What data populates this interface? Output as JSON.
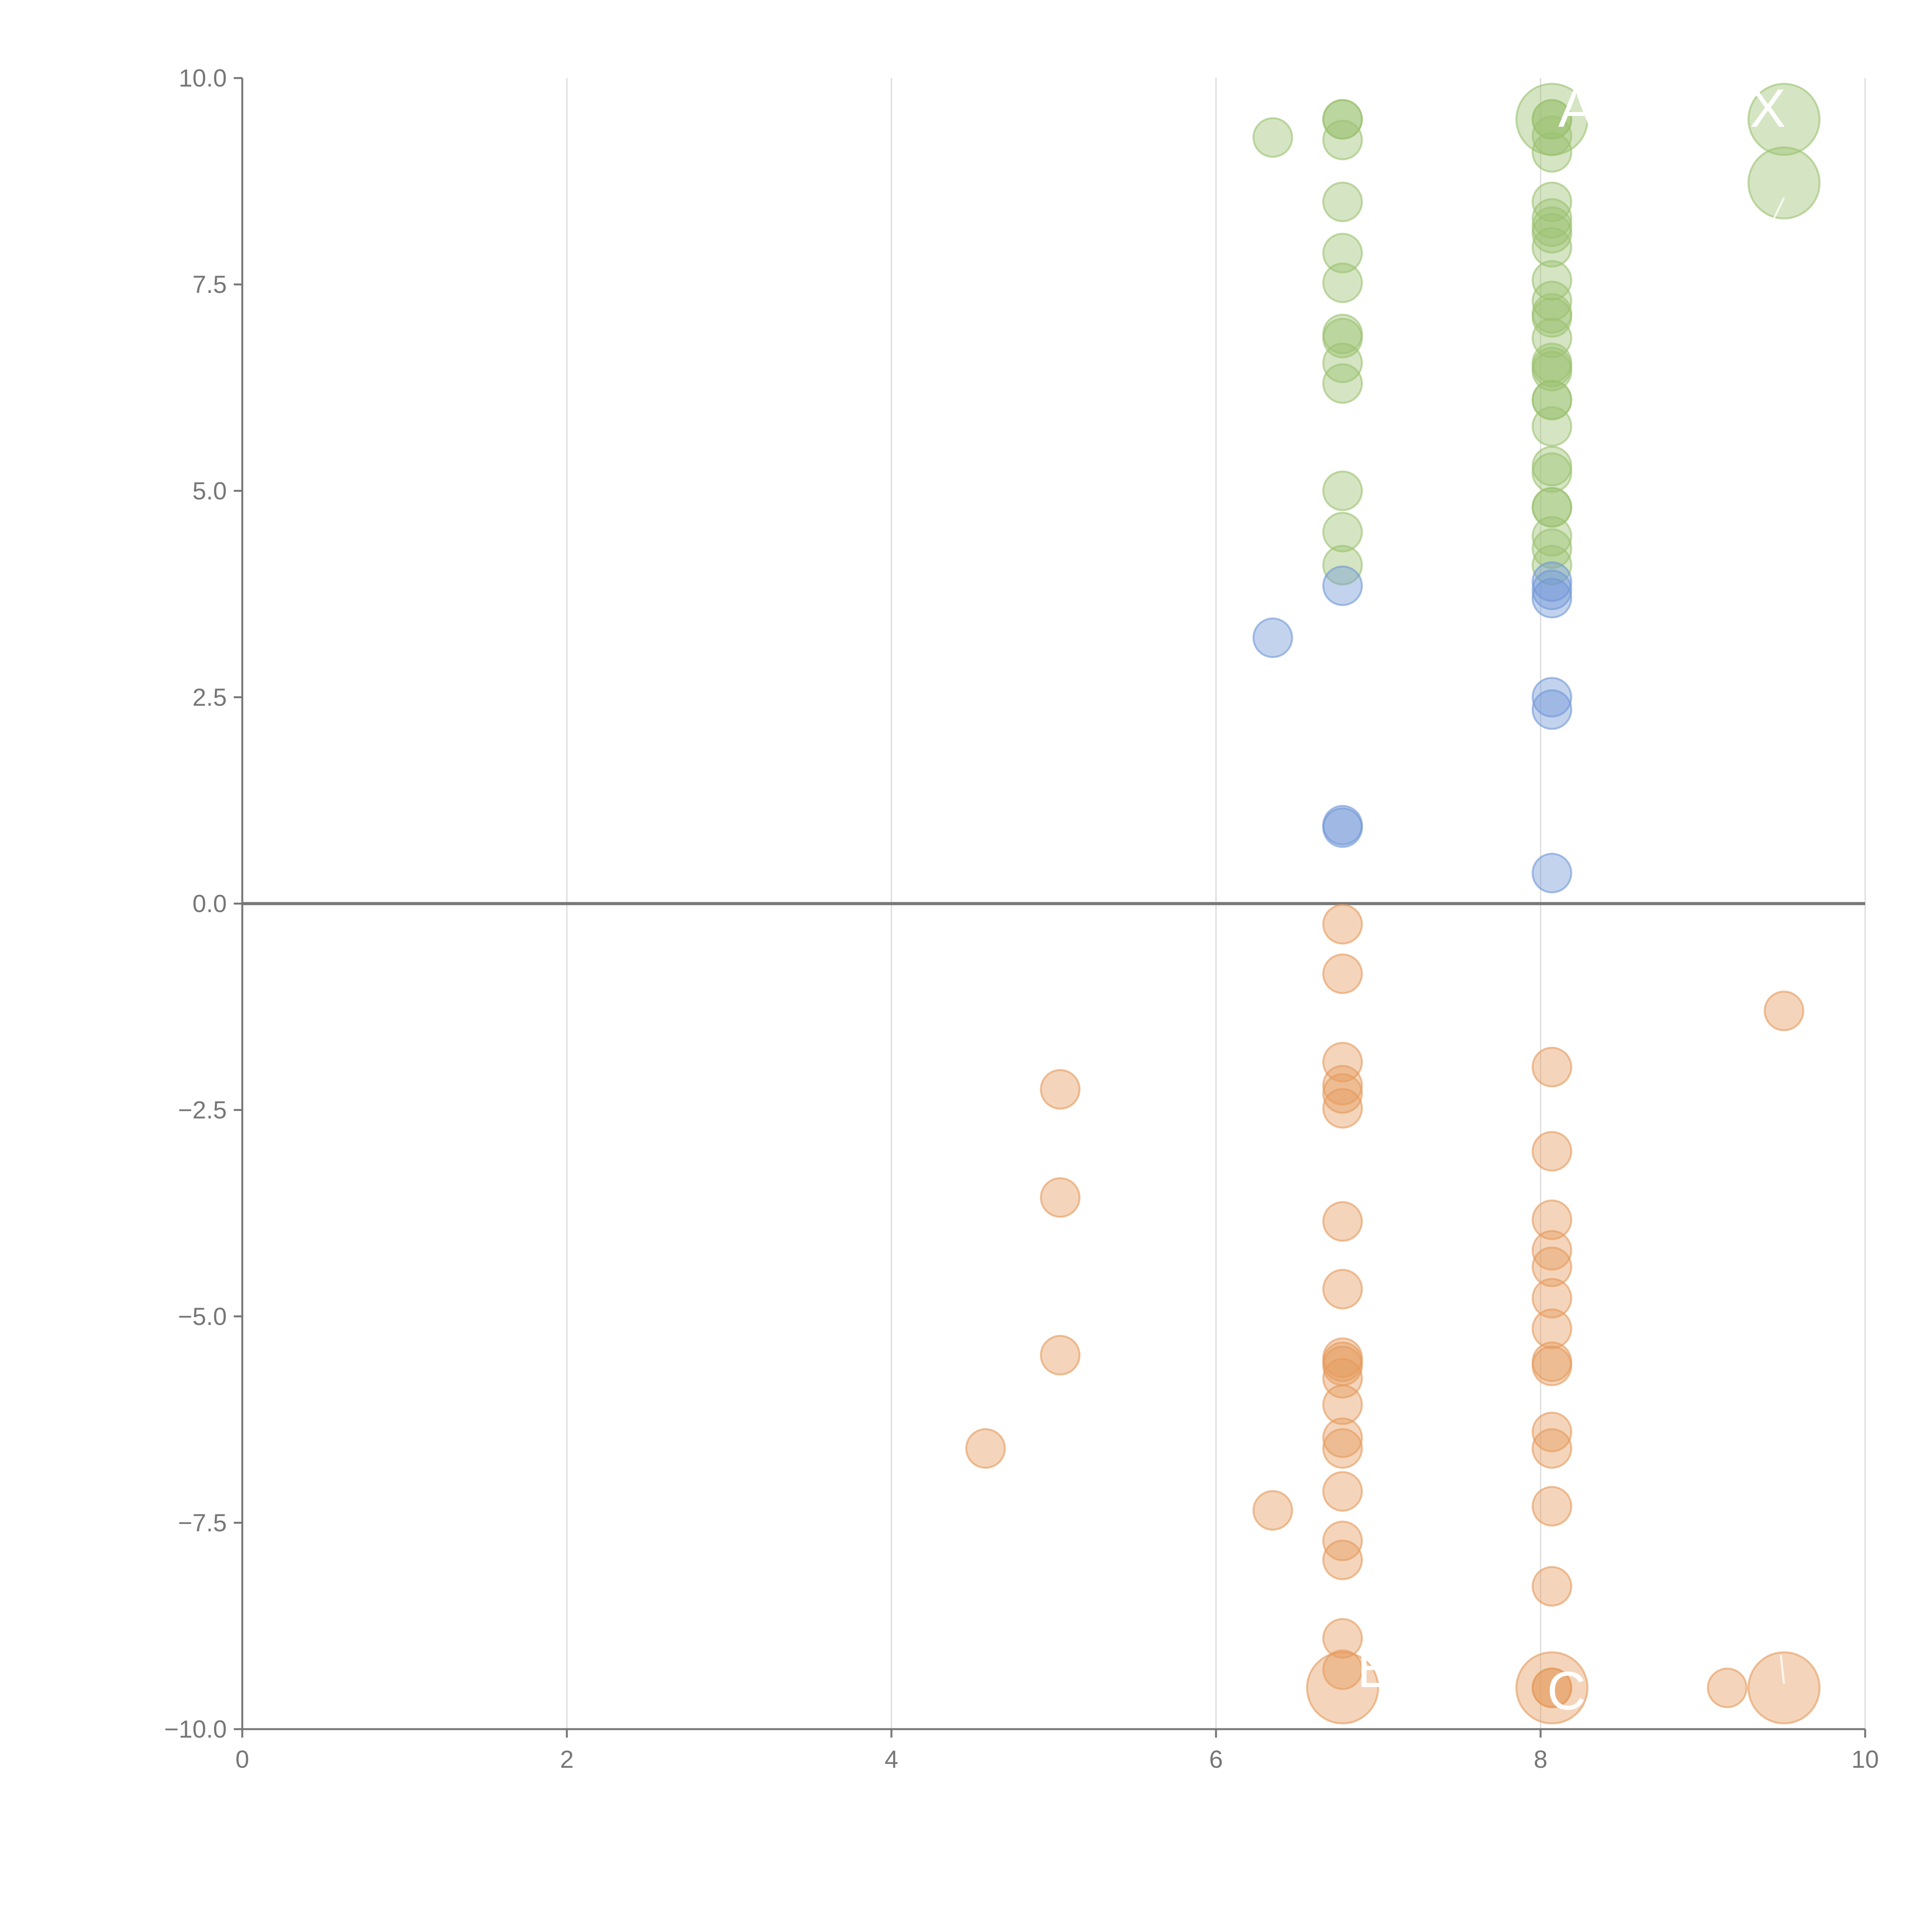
{
  "chart_data": {
    "type": "scatter",
    "title": "",
    "xlabel": "",
    "ylabel": "",
    "xlim": [
      0,
      10
    ],
    "ylim": [
      -10,
      10
    ],
    "x_ticks": [
      "0",
      "2",
      "4",
      "6",
      "8",
      "10"
    ],
    "y_ticks": [
      "10.0",
      "7.5",
      "5.0",
      "2.5",
      "0.0",
      "−2.5",
      "−5.0",
      "−7.5",
      "−10.0"
    ],
    "grid": "vertical",
    "colors": {
      "green": "#9bc26f",
      "blue": "#6f97d6",
      "orange": "#e59a5c",
      "axis": "#777777",
      "grid": "#d9d9d9"
    },
    "series": [
      {
        "name": "green",
        "color": "#9bc26f",
        "points": [
          [
            6.35,
            9.28
          ],
          [
            6.78,
            9.5
          ],
          [
            6.78,
            9.5
          ],
          [
            6.78,
            9.25
          ],
          [
            6.78,
            8.5
          ],
          [
            6.78,
            7.88
          ],
          [
            6.78,
            7.52
          ],
          [
            6.78,
            6.9
          ],
          [
            6.78,
            6.85
          ],
          [
            6.78,
            6.55
          ],
          [
            6.78,
            6.3
          ],
          [
            6.78,
            5.0
          ],
          [
            6.78,
            4.5
          ],
          [
            6.78,
            4.1
          ],
          [
            8.07,
            9.5
          ],
          [
            8.07,
            9.5
          ],
          [
            8.07,
            9.3
          ],
          [
            8.07,
            9.1
          ],
          [
            8.07,
            8.5
          ],
          [
            8.07,
            8.3
          ],
          [
            8.07,
            8.2
          ],
          [
            8.07,
            8.12
          ],
          [
            8.07,
            7.95
          ],
          [
            8.07,
            7.55
          ],
          [
            8.07,
            7.3
          ],
          [
            8.07,
            7.15
          ],
          [
            8.07,
            7.1
          ],
          [
            8.07,
            6.85
          ],
          [
            8.07,
            6.55
          ],
          [
            8.07,
            6.5
          ],
          [
            8.07,
            6.45
          ],
          [
            8.07,
            6.1
          ],
          [
            8.07,
            6.1
          ],
          [
            8.07,
            5.78
          ],
          [
            8.07,
            5.3
          ],
          [
            8.07,
            5.22
          ],
          [
            8.07,
            4.8
          ],
          [
            8.07,
            4.8
          ],
          [
            8.07,
            4.45
          ],
          [
            8.07,
            4.3
          ],
          [
            8.07,
            4.1
          ]
        ],
        "large_points": [
          [
            8.07,
            9.5
          ],
          [
            9.5,
            9.5
          ],
          [
            9.5,
            8.73
          ]
        ]
      },
      {
        "name": "blue",
        "color": "#6f97d6",
        "points": [
          [
            6.35,
            3.22
          ],
          [
            6.78,
            3.85
          ],
          [
            6.78,
            0.95
          ],
          [
            6.78,
            0.92
          ],
          [
            8.07,
            3.9
          ],
          [
            8.07,
            3.8
          ],
          [
            8.07,
            3.7
          ],
          [
            8.07,
            2.5
          ],
          [
            8.07,
            2.35
          ],
          [
            8.07,
            0.37
          ]
        ],
        "large_points": []
      },
      {
        "name": "orange",
        "color": "#e59a5c",
        "points": [
          [
            4.58,
            -6.6
          ],
          [
            5.04,
            -2.25
          ],
          [
            5.04,
            -3.56
          ],
          [
            5.04,
            -5.47
          ],
          [
            6.35,
            -7.35
          ],
          [
            6.78,
            -0.25
          ],
          [
            6.78,
            -0.85
          ],
          [
            6.78,
            -1.92
          ],
          [
            6.78,
            -2.2
          ],
          [
            6.78,
            -2.3
          ],
          [
            6.78,
            -2.48
          ],
          [
            6.78,
            -3.85
          ],
          [
            6.78,
            -4.67
          ],
          [
            6.78,
            -5.5
          ],
          [
            6.78,
            -5.55
          ],
          [
            6.78,
            -5.6
          ],
          [
            6.78,
            -5.75
          ],
          [
            6.78,
            -6.07
          ],
          [
            6.78,
            -6.47
          ],
          [
            6.78,
            -6.6
          ],
          [
            6.78,
            -7.12
          ],
          [
            6.78,
            -7.72
          ],
          [
            6.78,
            -7.95
          ],
          [
            6.78,
            -8.9
          ],
          [
            6.78,
            -9.28
          ],
          [
            8.07,
            -1.98
          ],
          [
            8.07,
            -3.0
          ],
          [
            8.07,
            -3.83
          ],
          [
            8.07,
            -4.2
          ],
          [
            8.07,
            -4.4
          ],
          [
            8.07,
            -4.78
          ],
          [
            8.07,
            -5.15
          ],
          [
            8.07,
            -5.55
          ],
          [
            8.07,
            -5.6
          ],
          [
            8.07,
            -6.4
          ],
          [
            8.07,
            -6.6
          ],
          [
            8.07,
            -7.3
          ],
          [
            8.07,
            -8.27
          ],
          [
            8.07,
            -9.5
          ],
          [
            8.07,
            -9.5
          ],
          [
            9.15,
            -9.5
          ],
          [
            9.5,
            -1.3
          ]
        ],
        "large_points": [
          [
            6.78,
            -9.5
          ],
          [
            8.07,
            -9.5
          ],
          [
            9.5,
            -9.5
          ]
        ]
      }
    ],
    "annotations": [
      {
        "text": "A",
        "x": 8.22,
        "y": 9.62
      },
      {
        "text": "X",
        "x": 9.4,
        "y": 9.62
      },
      {
        "text": "E",
        "x": 6.98,
        "y": -9.28
      },
      {
        "text": "C",
        "x": 8.16,
        "y": -9.55
      }
    ],
    "leader_lines": [
      {
        "from": [
          9.42,
          8.23
        ],
        "to": [
          9.5,
          8.55
        ]
      },
      {
        "from": [
          9.5,
          -9.45
        ],
        "to": [
          9.48,
          -9.1
        ]
      }
    ]
  }
}
